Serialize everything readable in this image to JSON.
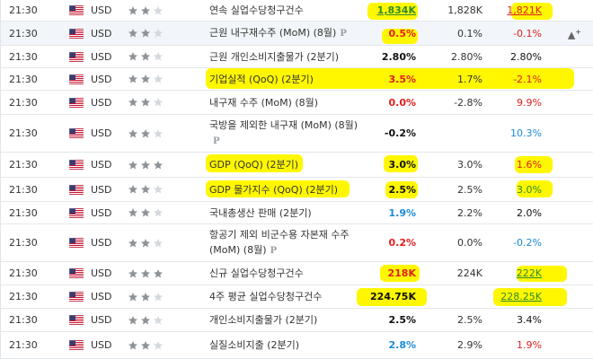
{
  "rows": [
    {
      "time": "21:30",
      "currency": "USD",
      "stars": 2,
      "event": "연속 실업수당청구건수",
      "p": false,
      "actual": "1,834K",
      "actual_color": "green",
      "forecast": "1,828K",
      "previous": "1,821K",
      "previous_color": "red"
    },
    {
      "time": "21:30",
      "currency": "USD",
      "stars": 2,
      "event": "근원 내구재수주 (MoM) (8월)",
      "p": true,
      "actual": "0.5%",
      "actual_color": "red",
      "forecast": "0.1%",
      "previous": "-0.1%",
      "previous_color": "red"
    },
    {
      "time": "21:30",
      "currency": "USD",
      "stars": 2,
      "event": "근원 개인소비지출물가 (2분기)",
      "p": false,
      "actual": "2.80%",
      "actual_color": "black",
      "forecast": "2.80%",
      "previous": "2.80%",
      "previous_color": "black"
    },
    {
      "time": "21:30",
      "currency": "USD",
      "stars": 2,
      "event": "기업실적 (QoQ) (2분기)",
      "p": false,
      "actual": "3.5%",
      "actual_color": "red",
      "forecast": "1.7%",
      "previous": "-2.1%",
      "previous_color": "red"
    },
    {
      "time": "21:30",
      "currency": "USD",
      "stars": 2,
      "event": "내구재 수주 (MoM) (8월)",
      "p": false,
      "actual": "0.0%",
      "actual_color": "red",
      "forecast": "-2.8%",
      "previous": "9.9%",
      "previous_color": "red"
    },
    {
      "time": "21:30",
      "currency": "USD",
      "stars": 2,
      "event": "국방을 제외한 내구재 (MoM) (8월)",
      "p": true,
      "actual": "-0.2%",
      "actual_color": "black",
      "forecast": "",
      "previous": "10.3%",
      "previous_color": "blue"
    },
    {
      "time": "21:30",
      "currency": "USD",
      "stars": 3,
      "event": "GDP (QoQ) (2분기)",
      "p": false,
      "actual": "3.0%",
      "actual_color": "black",
      "forecast": "3.0%",
      "previous": "1.6%",
      "previous_color": "red"
    },
    {
      "time": "21:30",
      "currency": "USD",
      "stars": 2,
      "event": "GDP 물가지수 (QoQ) (2분기)",
      "p": false,
      "actual": "2.5%",
      "actual_color": "black",
      "forecast": "2.5%",
      "previous": "3.0%",
      "previous_color": "green"
    },
    {
      "time": "21:30",
      "currency": "USD",
      "stars": 2,
      "event": "국내총생산 판매 (2분기)",
      "p": false,
      "actual": "1.9%",
      "actual_color": "blue",
      "forecast": "2.2%",
      "previous": "2.0%",
      "previous_color": "black"
    },
    {
      "time": "21:30",
      "currency": "USD",
      "stars": 2,
      "event": "항공기 제외 비군수용 자본재 수주 (MoM) (8월)",
      "p": true,
      "actual": "0.2%",
      "actual_color": "red",
      "forecast": "0.0%",
      "previous": "-0.2%",
      "previous_color": "blue"
    },
    {
      "time": "21:30",
      "currency": "USD",
      "stars": 3,
      "event": "신규 실업수당청구건수",
      "p": false,
      "actual": "218K",
      "actual_color": "red",
      "forecast": "224K",
      "previous": "222K",
      "previous_color": "green"
    },
    {
      "time": "21:30",
      "currency": "USD",
      "stars": 2,
      "event": "4주 평균 실업수당청구건수",
      "p": false,
      "actual": "224.75K",
      "actual_color": "black",
      "forecast": "",
      "previous": "228.25K",
      "previous_color": "green"
    },
    {
      "time": "21:30",
      "currency": "USD",
      "stars": 2,
      "event": "개인소비지출물가 (2분기)",
      "p": false,
      "actual": "2.5%",
      "actual_color": "black",
      "forecast": "2.5%",
      "previous": "3.4%",
      "previous_color": "black"
    },
    {
      "time": "21:30",
      "currency": "USD",
      "stars": 2,
      "event": "실질소비지출 (2분기)",
      "p": false,
      "actual": "2.8%",
      "actual_color": "blue",
      "forecast": "2.9%",
      "previous": "1.9%",
      "previous_color": "red"
    }
  ],
  "colors": {
    "highlight": "#fff700",
    "star_on": "#8e9398",
    "star_off": "#d6d9dc",
    "green": "#2e8b2e",
    "red": "#e02020",
    "blue": "#1a8ad8"
  },
  "p_icon": "P",
  "alert_icon": "bell-plus-icon"
}
